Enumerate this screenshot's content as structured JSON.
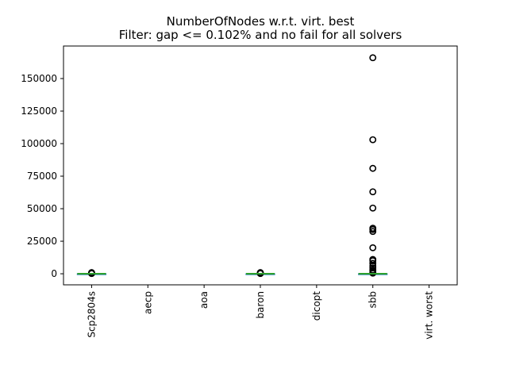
{
  "chart_data": {
    "type": "boxplot",
    "title": "NumberOfNodes w.r.t. virt. best",
    "subtitle": "Filter: gap <= 0.102% and no fail for all solvers",
    "xlabel": "",
    "ylabel": "",
    "categories": [
      "Scp2804s",
      "aecp",
      "aoa",
      "baron",
      "dicopt",
      "sbb",
      "virt. worst"
    ],
    "ylim": [
      -8500,
      175000
    ],
    "yticks": [
      0,
      25000,
      50000,
      75000,
      100000,
      125000,
      150000
    ],
    "ytick_labels": [
      "0",
      "25000",
      "50000",
      "75000",
      "100000",
      "125000",
      "150000"
    ],
    "grid": false,
    "legend": "none",
    "colors": {
      "median": "#2ca02c",
      "box": "#1f77b4",
      "outlier": "#000000"
    },
    "series": [
      {
        "category": "Scp2804s",
        "box": [
          0,
          0,
          0,
          0,
          0
        ],
        "outliers": [
          200,
          500,
          900
        ]
      },
      {
        "category": "aecp",
        "box": null,
        "outliers": []
      },
      {
        "category": "aoa",
        "box": null,
        "outliers": []
      },
      {
        "category": "baron",
        "box": [
          0,
          0,
          0,
          0,
          0
        ],
        "outliers": [
          200,
          500,
          900
        ]
      },
      {
        "category": "dicopt",
        "box": null,
        "outliers": []
      },
      {
        "category": "sbb",
        "box": [
          0,
          0,
          0,
          0,
          0
        ],
        "outliers": [
          166000,
          103000,
          81000,
          63000,
          50500,
          35000,
          34000,
          32500,
          20000,
          11000,
          10000,
          8000,
          6000,
          4500,
          3000,
          2000,
          1000,
          500
        ]
      },
      {
        "category": "virt. worst",
        "box": null,
        "outliers": []
      }
    ]
  }
}
